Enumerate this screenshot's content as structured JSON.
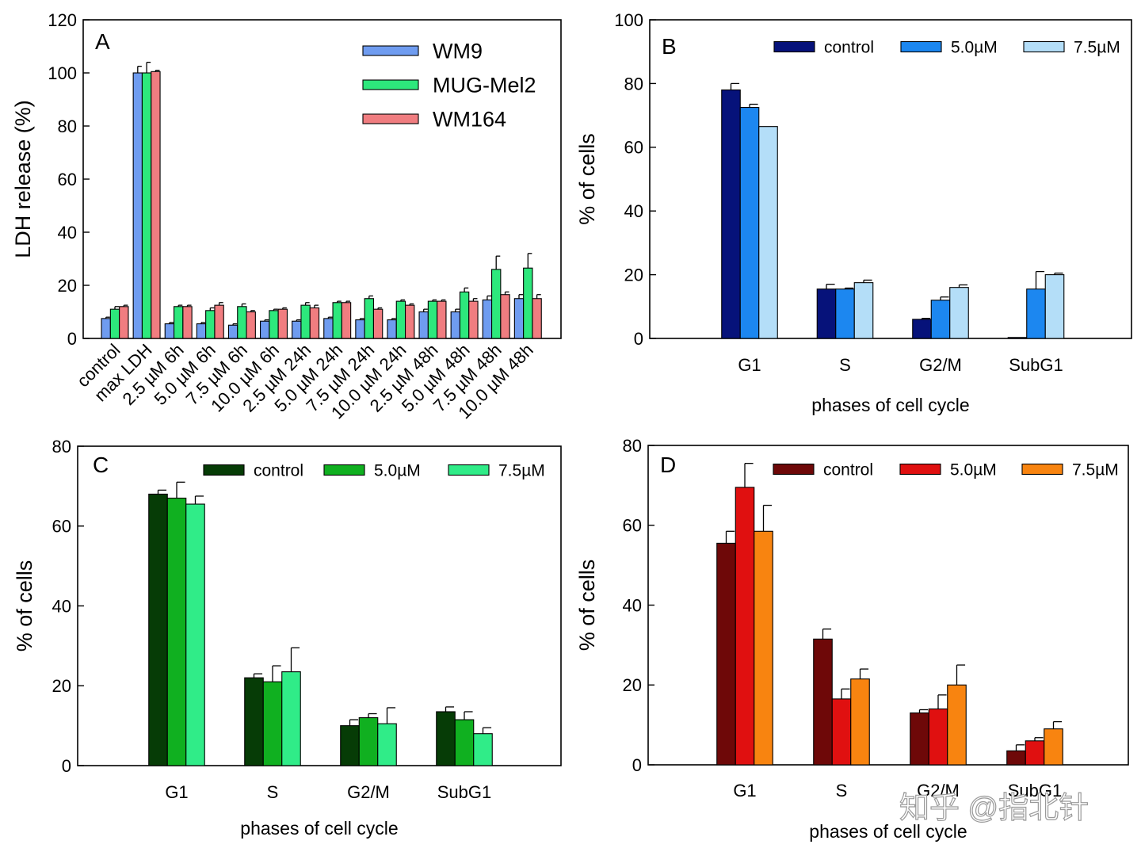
{
  "chart_data": [
    {
      "panel": "A",
      "type": "bar",
      "ylabel": "LDH release (%)",
      "xlabel": "",
      "ylim": [
        0,
        120
      ],
      "yticks": [
        0,
        20,
        40,
        60,
        80,
        100,
        120
      ],
      "legend_position": "top-right",
      "grid": false,
      "categories": [
        "control",
        "max LDH",
        "2.5 µM 6h",
        "5.0 µM 6h",
        "7.5 µM 6h",
        "10.0 µM 6h",
        "2.5 µM 24h",
        "5.0 µM 24h",
        "7.5 µM 24h",
        "10.0 µM 24h",
        "2.5 µM 48h",
        "5.0 µM 48h",
        "7.5 µM 48h",
        "10.0 µM 48h"
      ],
      "series": [
        {
          "name": "WM9",
          "color": "#6f9cf0",
          "values": [
            7.5,
            100,
            5.5,
            5.5,
            5,
            6.5,
            6.5,
            7.5,
            7,
            7,
            10,
            10,
            14.5,
            15
          ],
          "errors": [
            0.5,
            2.5,
            0.5,
            0.5,
            0.5,
            0.5,
            0.5,
            0.5,
            0.5,
            0.5,
            1,
            1,
            1.5,
            1.5
          ]
        },
        {
          "name": "MUG-Mel2",
          "color": "#2de87c",
          "values": [
            11,
            100,
            12,
            10.5,
            12,
            10.5,
            12.5,
            13.5,
            15,
            14,
            14,
            17.5,
            26,
            26.5
          ],
          "errors": [
            1,
            4,
            0.5,
            1,
            1,
            0.5,
            1,
            0.5,
            1,
            0.5,
            0.5,
            1.5,
            5,
            5.5
          ]
        },
        {
          "name": "WM164",
          "color": "#f07d80",
          "values": [
            12,
            100.5,
            12,
            12.5,
            10,
            11,
            11.5,
            13.5,
            11,
            12.5,
            14,
            14,
            16.5,
            15
          ],
          "errors": [
            0.5,
            0.5,
            0.5,
            1,
            0.5,
            0.5,
            1,
            0.5,
            0.5,
            0.5,
            0.5,
            1,
            1,
            1.5
          ]
        }
      ]
    },
    {
      "panel": "B",
      "type": "bar",
      "xlabel": "phases of cell cycle",
      "ylabel": "% of cells",
      "ylim": [
        0,
        100
      ],
      "yticks": [
        0,
        20,
        40,
        60,
        80,
        100
      ],
      "legend_position": "top-right",
      "grid": false,
      "categories": [
        "G1",
        "S",
        "G2/M",
        "SubG1"
      ],
      "series": [
        {
          "name": "control",
          "color": "#06127a",
          "values": [
            78,
            15.5,
            6,
            0.3
          ],
          "errors": [
            2,
            1.5,
            0.3,
            0
          ]
        },
        {
          "name": "5.0µM",
          "color": "#1c87f0",
          "values": [
            72.5,
            15.5,
            12,
            15.5
          ],
          "errors": [
            1,
            0.3,
            1,
            5.5
          ]
        },
        {
          "name": "7.5µM",
          "color": "#b4def8",
          "values": [
            66.5,
            17.5,
            16,
            20
          ],
          "errors": [
            0,
            0.8,
            0.8,
            0.5
          ]
        }
      ]
    },
    {
      "panel": "C",
      "type": "bar",
      "xlabel": "phases of cell cycle",
      "ylabel": "% of cells",
      "ylim": [
        0,
        80
      ],
      "yticks": [
        0,
        20,
        40,
        60,
        80
      ],
      "legend_position": "top-right",
      "grid": false,
      "categories": [
        "G1",
        "S",
        "G2/M",
        "SubG1"
      ],
      "series": [
        {
          "name": "control",
          "color": "#063c06",
          "values": [
            68,
            22,
            10,
            13.5
          ],
          "errors": [
            1,
            1,
            1.5,
            1.2
          ]
        },
        {
          "name": "5.0µM",
          "color": "#10b020",
          "values": [
            67,
            21,
            12,
            11.5
          ],
          "errors": [
            4,
            4,
            1,
            2
          ]
        },
        {
          "name": "7.5µM",
          "color": "#30ec88",
          "values": [
            65.5,
            23.5,
            10.5,
            8
          ],
          "errors": [
            2,
            6,
            4,
            1.5
          ]
        }
      ]
    },
    {
      "panel": "D",
      "type": "bar",
      "xlabel": "phases of cell cycle",
      "ylabel": "% of cells",
      "ylim": [
        0,
        80
      ],
      "yticks": [
        0,
        20,
        40,
        60,
        80
      ],
      "legend_position": "top-right",
      "grid": false,
      "categories": [
        "G1",
        "S",
        "G2/M",
        "SubG1"
      ],
      "series": [
        {
          "name": "control",
          "color": "#6e0808",
          "values": [
            55.5,
            31.5,
            13,
            3.5
          ],
          "errors": [
            3,
            2.5,
            0.8,
            1.5
          ]
        },
        {
          "name": "5.0µM",
          "color": "#e01010",
          "values": [
            69.5,
            16.5,
            14,
            6
          ],
          "errors": [
            6,
            2.5,
            3.5,
            0.8
          ]
        },
        {
          "name": "7.5µM",
          "color": "#f88410",
          "values": [
            58.5,
            21.5,
            20,
            9
          ],
          "errors": [
            6.5,
            2.5,
            5,
            1.8
          ]
        }
      ]
    }
  ],
  "watermark": "知乎 @指北针"
}
